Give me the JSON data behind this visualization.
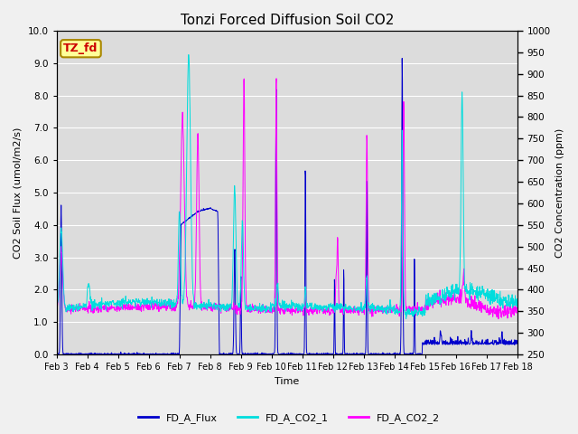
{
  "title": "Tonzi Forced Diffusion Soil CO2",
  "xlabel": "Time",
  "ylabel_left": "CO2 Soil Flux (umol/m2/s)",
  "ylabel_right": "CO2 Concentration (ppm)",
  "ylim_left": [
    0.0,
    10.0
  ],
  "ylim_right": [
    250,
    1000
  ],
  "yticks_left": [
    0.0,
    1.0,
    2.0,
    3.0,
    4.0,
    5.0,
    6.0,
    7.0,
    8.0,
    9.0,
    10.0
  ],
  "yticks_right": [
    250,
    300,
    350,
    400,
    450,
    500,
    550,
    600,
    650,
    700,
    750,
    800,
    850,
    900,
    950,
    1000
  ],
  "xtick_labels": [
    "Feb 3",
    "Feb 4",
    "Feb 5",
    "Feb 6",
    "Feb 7",
    "Feb 8",
    "Feb 9",
    "Feb 10",
    "Feb 11",
    "Feb 12",
    "Feb 13",
    "Feb 14",
    "Feb 15",
    "Feb 16",
    "Feb 17",
    "Feb 18"
  ],
  "n_points": 1500,
  "flux_color": "#0000CC",
  "co2_1_color": "#00DDDD",
  "co2_2_color": "#FF00FF",
  "legend_labels": [
    "FD_A_Flux",
    "FD_A_CO2_1",
    "FD_A_CO2_2"
  ],
  "annotation_text": "TZ_fd",
  "annotation_color": "#CC0000",
  "annotation_bg": "#FFFF99",
  "background_color": "#DCDCDC",
  "fig_bg_color": "#F0F0F0",
  "grid_color": "#FFFFFF",
  "title_fontsize": 11,
  "label_fontsize": 8,
  "tick_fontsize": 7.5,
  "legend_fontsize": 8
}
